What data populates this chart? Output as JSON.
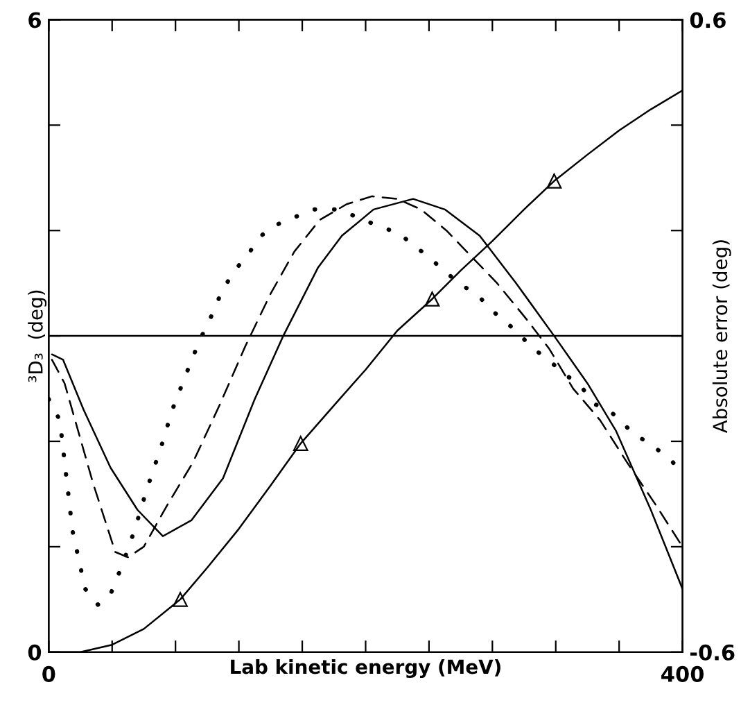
{
  "chart_data": {
    "type": "line",
    "xlabel": "Lab kinetic energy (MeV)",
    "ylabel": "³D₃  (deg)",
    "y2label": "Absolute error (deg)",
    "xlim": [
      0,
      400
    ],
    "xticks": [
      0,
      {
        "value": 40,
        "label": null
      },
      {
        "value": 80,
        "label": null
      },
      {
        "value": 120,
        "label": null
      },
      {
        "value": 160,
        "label": null
      },
      {
        "value": 200,
        "label": null
      },
      {
        "value": 240,
        "label": null
      },
      {
        "value": 280,
        "label": null
      },
      {
        "value": 320,
        "label": null
      },
      {
        "value": 360,
        "label": null
      },
      400
    ],
    "ylim": [
      0,
      6
    ],
    "yticks": [
      0,
      {
        "value": 1,
        "label": null
      },
      {
        "value": 2,
        "label": null
      },
      {
        "value": 3,
        "label": null
      },
      {
        "value": 4,
        "label": null
      },
      {
        "value": 5,
        "label": null
      },
      6
    ],
    "y2lim": [
      -0.6,
      0.6
    ],
    "y2ticks": [
      -0.6,
      {
        "value": -0.4,
        "label": null
      },
      {
        "value": -0.2,
        "label": null
      },
      {
        "value": 0,
        "label": null
      },
      {
        "value": 0.2,
        "label": null
      },
      {
        "value": 0.4,
        "label": null
      },
      0.6
    ],
    "ref_lines": [
      {
        "axis": "y2",
        "value": 0,
        "color": "#000000",
        "line_style": "solid"
      }
    ],
    "grid": false,
    "legend": false,
    "series": [
      {
        "color": "#000000",
        "line_style": "solid",
        "marker": "none",
        "x": [
          0,
          20,
          40,
          60,
          83,
          100,
          120,
          140,
          159,
          180,
          200,
          220,
          242,
          260,
          280,
          300,
          319,
          340,
          360,
          380,
          400
        ],
        "values": [
          0,
          0.0,
          0.07,
          0.22,
          0.5,
          0.8,
          1.17,
          1.58,
          1.98,
          2.34,
          2.68,
          3.05,
          3.35,
          3.62,
          3.9,
          4.2,
          4.47,
          4.72,
          4.95,
          5.15,
          5.33
        ]
      },
      {
        "type": "scatter",
        "color": "#000000",
        "marker": "triangle",
        "x": [
          83,
          159,
          242,
          319
        ],
        "values": [
          0.5,
          1.98,
          3.35,
          4.47
        ]
      },
      {
        "axis": "y2",
        "color": "#000000",
        "line_style": "solid",
        "marker": "none",
        "x": [
          2,
          9,
          22,
          39,
          56,
          72,
          90,
          110,
          130,
          148,
          170,
          185,
          205,
          230,
          250,
          272,
          295,
          319,
          340,
          358,
          380,
          400
        ],
        "values": [
          -0.035,
          -0.045,
          -0.14,
          -0.25,
          -0.33,
          -0.38,
          -0.35,
          -0.27,
          -0.12,
          0.0,
          0.13,
          0.19,
          0.24,
          0.26,
          0.24,
          0.19,
          0.1,
          0.0,
          -0.09,
          -0.18,
          -0.33,
          -0.48
        ]
      },
      {
        "axis": "y2",
        "color": "#000000",
        "line_style": "dashed",
        "marker": "none",
        "x": [
          2,
          10,
          28,
          42,
          50,
          60,
          75,
          91,
          108,
          124,
          140,
          155,
          171,
          188,
          204,
          220,
          235,
          251,
          267,
          283,
          302,
          316,
          331,
          348,
          365,
          383,
          400
        ],
        "values": [
          -0.045,
          -0.09,
          -0.28,
          -0.41,
          -0.42,
          -0.4,
          -0.32,
          -0.24,
          -0.13,
          -0.02,
          0.08,
          0.16,
          0.22,
          0.25,
          0.265,
          0.26,
          0.24,
          0.2,
          0.15,
          0.1,
          0.03,
          -0.025,
          -0.1,
          -0.16,
          -0.24,
          -0.32,
          -0.4
        ]
      },
      {
        "axis": "y2",
        "color": "#000000",
        "line_style": "dotted",
        "marker": "none",
        "x": [
          0,
          7,
          15,
          23,
          31,
          39,
          47,
          54,
          62,
          71,
          78,
          87,
          95,
          103,
          110,
          119,
          127,
          134,
          143,
          151,
          159,
          167,
          175,
          183,
          191,
          199,
          207,
          216,
          223,
          231,
          240,
          247,
          255,
          264,
          273,
          281,
          289,
          297,
          304,
          313,
          321,
          329,
          337,
          345,
          353,
          361,
          370,
          378,
          386,
          394,
          400
        ],
        "values": [
          -0.12,
          -0.16,
          -0.37,
          -0.48,
          -0.51,
          -0.49,
          -0.43,
          -0.37,
          -0.29,
          -0.21,
          -0.14,
          -0.07,
          -0.01,
          0.04,
          0.09,
          0.13,
          0.16,
          0.19,
          0.21,
          0.22,
          0.23,
          0.24,
          0.24,
          0.24,
          0.23,
          0.22,
          0.21,
          0.2,
          0.19,
          0.17,
          0.15,
          0.13,
          0.11,
          0.09,
          0.07,
          0.045,
          0.025,
          0.004,
          -0.02,
          -0.04,
          -0.06,
          -0.08,
          -0.1,
          -0.13,
          -0.14,
          -0.16,
          -0.19,
          -0.2,
          -0.22,
          -0.24,
          -0.26
        ]
      }
    ]
  }
}
